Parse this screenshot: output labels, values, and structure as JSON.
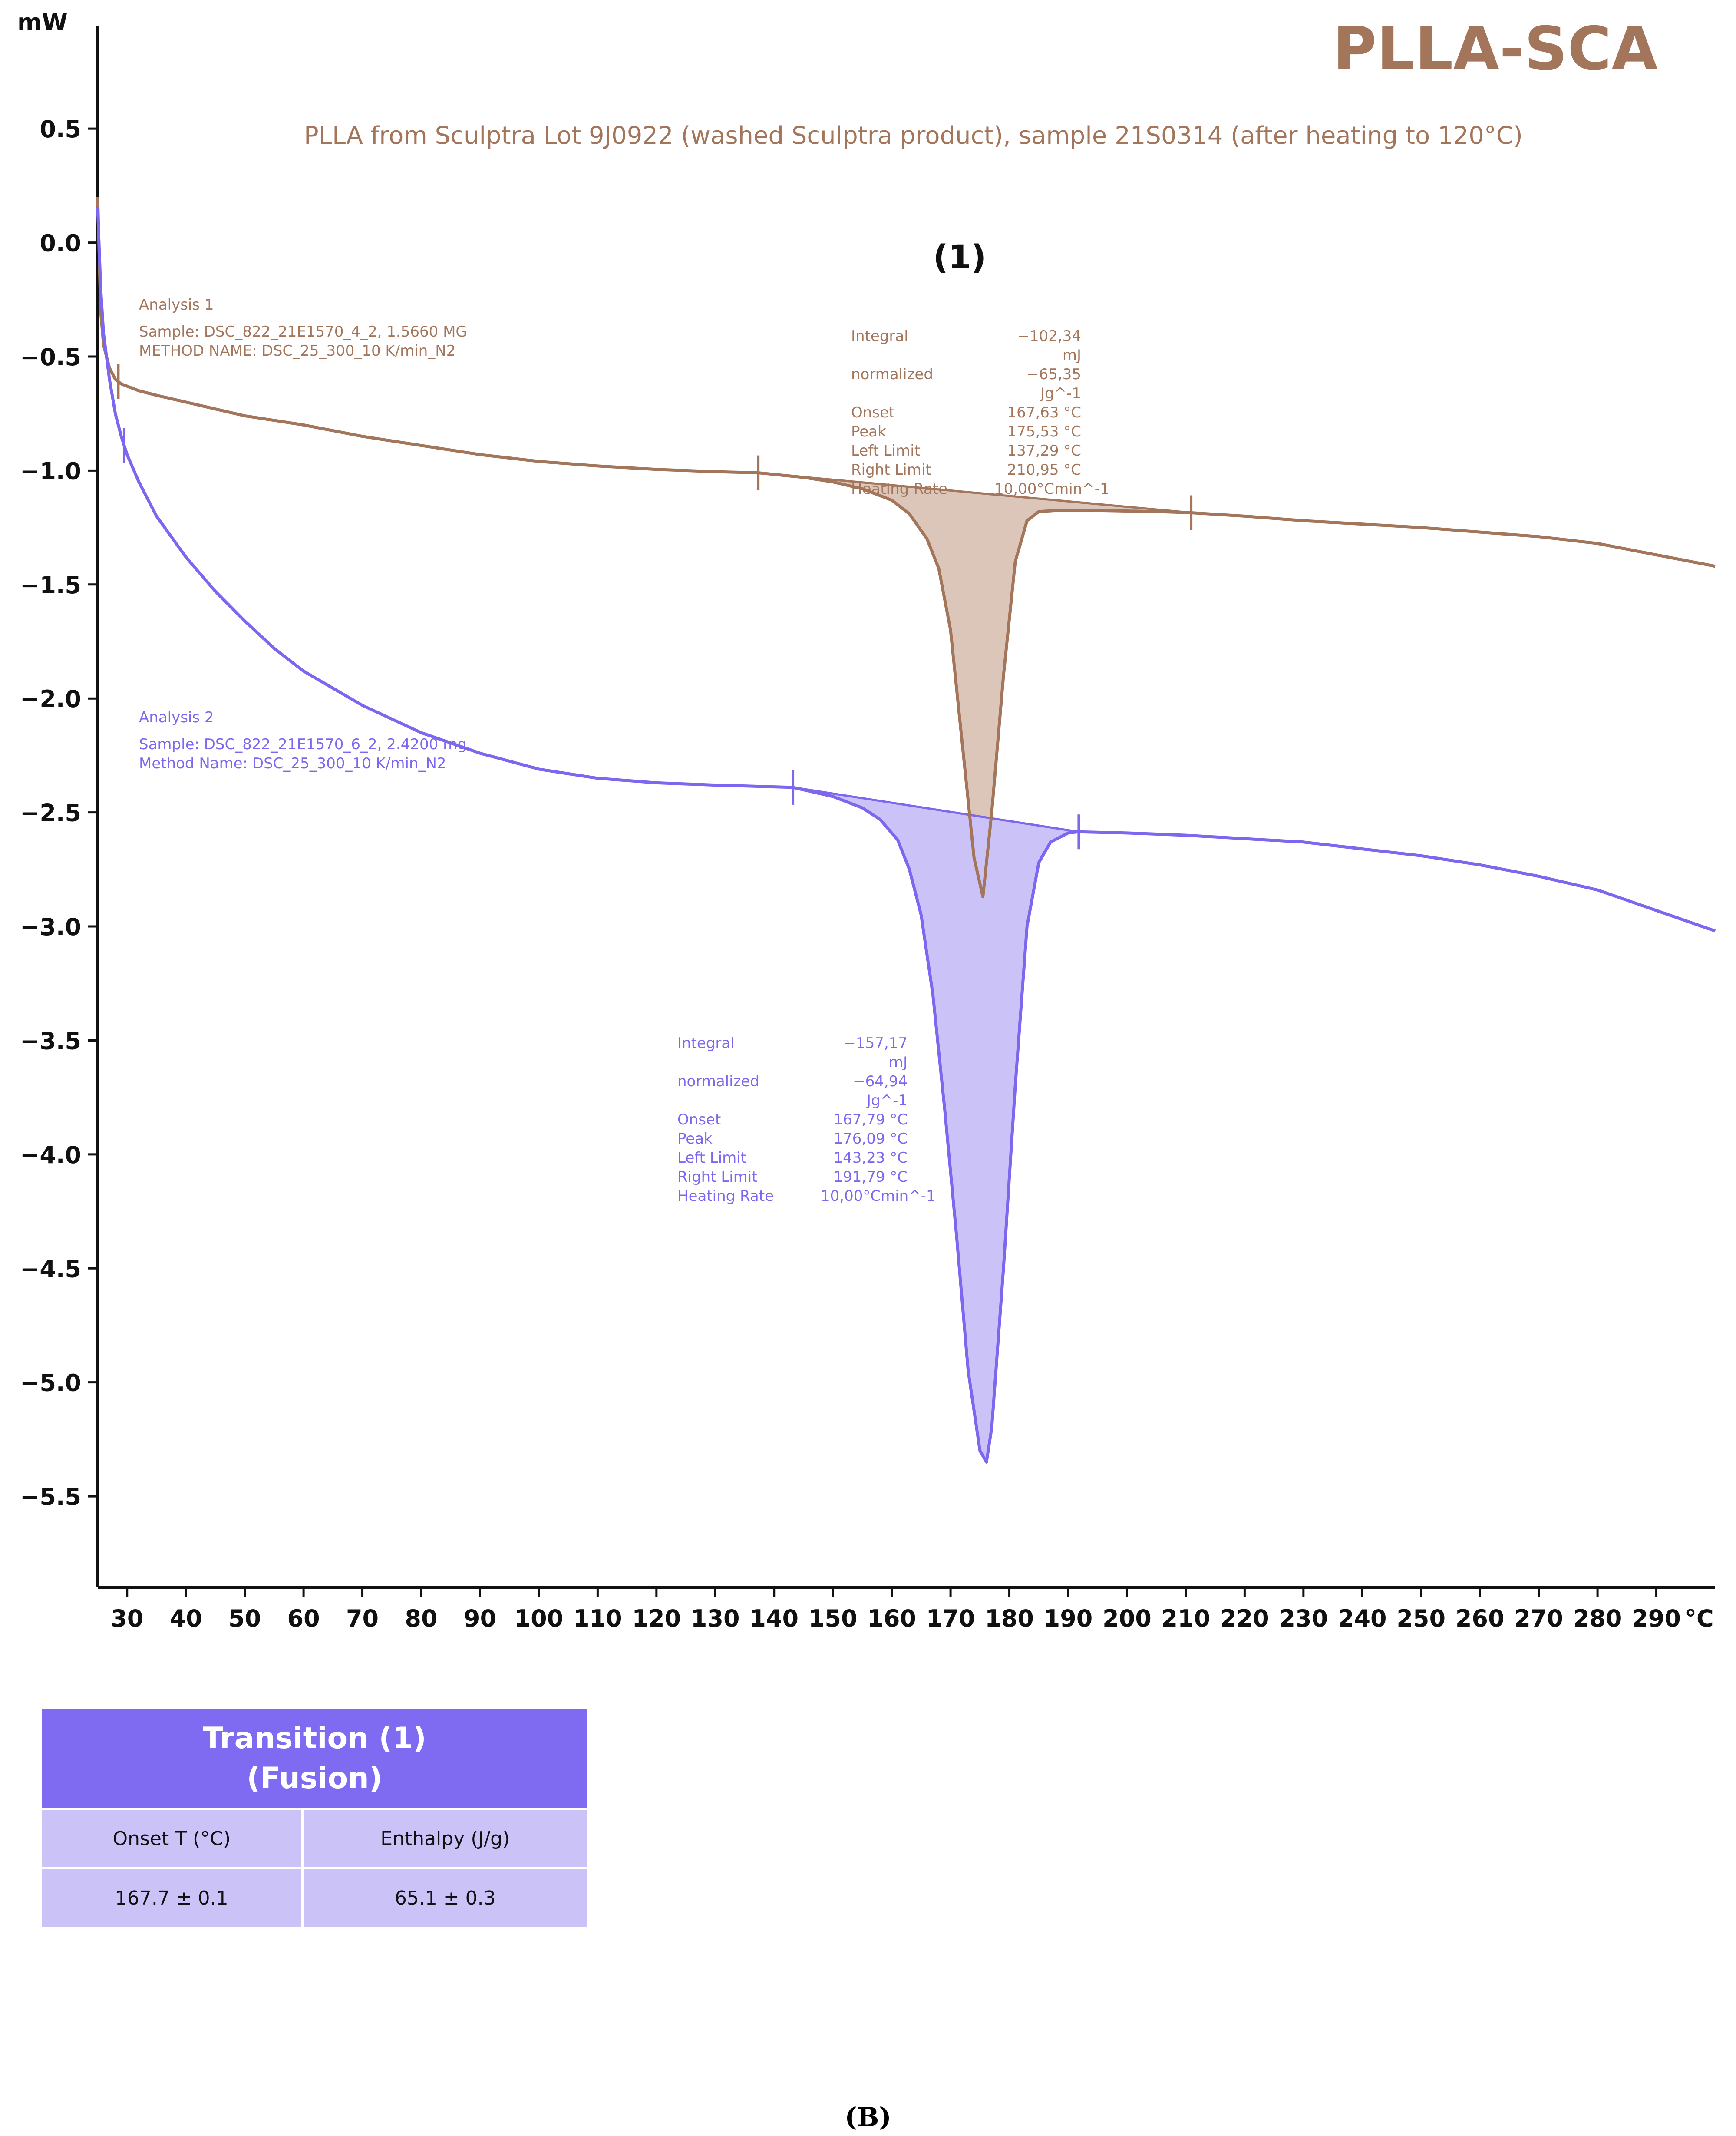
{
  "title": "PLLA-SCA",
  "subtitle": "PLLA from Sculptra Lot 9J0922 (washed Sculptra product), sample 21S0314 (after heating to 120°C)",
  "transition_label": "(1)",
  "analysis1": {
    "heading": "Analysis 1",
    "sample": "Sample: DSC_822_21E1570_4_2, 1.5660 MG",
    "method": "METHOD NAME: DSC_25_300_10 K/min_N2"
  },
  "analysis2": {
    "heading": "Analysis 2",
    "sample": "Sample: DSC_822_21E1570_6_2, 2.4200 mg",
    "method": "Method Name: DSC_25_300_10 K/min_N2"
  },
  "results1": [
    {
      "k": "Integral",
      "v": "−102,34 mJ"
    },
    {
      "k": "normalized",
      "v": "−65,35 Jg^-1"
    },
    {
      "k": "Onset",
      "v": "167,63 °C"
    },
    {
      "k": "Peak",
      "v": "175,53 °C"
    },
    {
      "k": "Left Limit",
      "v": "137,29 °C"
    },
    {
      "k": "Right Limit",
      "v": "210,95 °C"
    },
    {
      "k": "Heating Rate",
      "v": "10,00°Cmin^-1"
    }
  ],
  "results2": [
    {
      "k": "Integral",
      "v": "−157,17 mJ"
    },
    {
      "k": "normalized",
      "v": "−64,94 Jg^-1"
    },
    {
      "k": "Onset",
      "v": "167,79 °C"
    },
    {
      "k": "Peak",
      "v": "176,09 °C"
    },
    {
      "k": "Left Limit",
      "v": "143,23 °C"
    },
    {
      "k": "Right Limit",
      "v": "191,79 °C"
    },
    {
      "k": "Heating Rate",
      "v": "10,00°Cmin^-1"
    }
  ],
  "table": {
    "header_line1": "Transition (1)",
    "header_line2": "(Fusion)",
    "col1": "Onset T (°C)",
    "col2": "Enthalpy (J/g)",
    "val1": "167.7 ± 0.1",
    "val2": "65.1 ± 0.3"
  },
  "caption": "(B)",
  "colors": {
    "analysis1": "#a3755a",
    "analysis2": "#7b68ee",
    "fill1": "#dbc6b9",
    "fill2": "#cbc3f7"
  },
  "chart_data": {
    "type": "line",
    "xlabel": "°C",
    "ylabel": "mW",
    "xlim": [
      25,
      300
    ],
    "ylim": [
      -5.9,
      0.95
    ],
    "x_ticks": [
      30,
      40,
      50,
      60,
      70,
      80,
      90,
      100,
      110,
      120,
      130,
      140,
      150,
      160,
      170,
      180,
      190,
      200,
      210,
      220,
      230,
      240,
      250,
      260,
      270,
      280,
      290
    ],
    "y_ticks": [
      0.5,
      0.0,
      -0.5,
      -1.0,
      -1.5,
      -2.0,
      -2.5,
      -3.0,
      -3.5,
      -4.0,
      -4.5,
      -5.0,
      -5.5
    ],
    "grid": false,
    "series": [
      {
        "name": "Analysis 1",
        "x": [
          25.0,
          25.5,
          26.0,
          27.0,
          28.0,
          29.0,
          30.0,
          32.0,
          35.0,
          40.0,
          45.0,
          50.0,
          60.0,
          70.0,
          80.0,
          90.0,
          100.0,
          110.0,
          120.0,
          130.0,
          137.3,
          145.0,
          150.0,
          155.0,
          160.0,
          163.0,
          166.0,
          168.0,
          170.0,
          172.0,
          174.0,
          175.5,
          177.0,
          179.0,
          181.0,
          183.0,
          185.0,
          188.0,
          195.0,
          205.0,
          210.9,
          220.0,
          230.0,
          240.0,
          250.0,
          260.0,
          270.0,
          280.0,
          290.0,
          300.0
        ],
        "y": [
          0.2,
          -0.3,
          -0.45,
          -0.55,
          -0.6,
          -0.62,
          -0.63,
          -0.65,
          -0.67,
          -0.7,
          -0.73,
          -0.76,
          -0.8,
          -0.85,
          -0.89,
          -0.93,
          -0.96,
          -0.98,
          -0.995,
          -1.005,
          -1.01,
          -1.03,
          -1.05,
          -1.08,
          -1.13,
          -1.19,
          -1.3,
          -1.43,
          -1.7,
          -2.2,
          -2.7,
          -2.87,
          -2.5,
          -1.9,
          -1.4,
          -1.22,
          -1.18,
          -1.175,
          -1.175,
          -1.18,
          -1.185,
          -1.2,
          -1.22,
          -1.235,
          -1.25,
          -1.27,
          -1.29,
          -1.32,
          -1.37,
          -1.42
        ]
      },
      {
        "name": "Analysis 2",
        "x": [
          25.0,
          25.5,
          26.0,
          27.0,
          28.0,
          29.0,
          30.0,
          32.0,
          35.0,
          40.0,
          45.0,
          50.0,
          55.0,
          60.0,
          70.0,
          80.0,
          90.0,
          100.0,
          110.0,
          120.0,
          130.0,
          143.2,
          150.0,
          155.0,
          158.0,
          161.0,
          163.0,
          165.0,
          167.0,
          169.0,
          171.0,
          173.0,
          175.0,
          176.1,
          177.0,
          179.0,
          181.0,
          183.0,
          185.0,
          187.0,
          190.0,
          191.8,
          200.0,
          210.0,
          220.0,
          230.0,
          240.0,
          250.0,
          260.0,
          270.0,
          280.0,
          290.0,
          300.0
        ],
        "y": [
          0.15,
          -0.2,
          -0.4,
          -0.6,
          -0.75,
          -0.85,
          -0.93,
          -1.05,
          -1.2,
          -1.38,
          -1.53,
          -1.66,
          -1.78,
          -1.88,
          -2.03,
          -2.15,
          -2.24,
          -2.31,
          -2.35,
          -2.37,
          -2.38,
          -2.39,
          -2.43,
          -2.48,
          -2.53,
          -2.62,
          -2.75,
          -2.95,
          -3.3,
          -3.8,
          -4.35,
          -4.95,
          -5.3,
          -5.35,
          -5.2,
          -4.5,
          -3.7,
          -3.0,
          -2.72,
          -2.63,
          -2.59,
          -2.585,
          -2.59,
          -2.6,
          -2.615,
          -2.63,
          -2.66,
          -2.69,
          -2.73,
          -2.78,
          -2.84,
          -2.93,
          -3.02
        ]
      }
    ],
    "integration": [
      {
        "series": "Analysis 1",
        "left_limit": 137.29,
        "right_limit": 210.95,
        "baseline_y": [
          -1.01,
          -1.185
        ]
      },
      {
        "series": "Analysis 2",
        "left_limit": 143.23,
        "right_limit": 191.79,
        "baseline_y": [
          -2.39,
          -2.585
        ]
      }
    ]
  }
}
